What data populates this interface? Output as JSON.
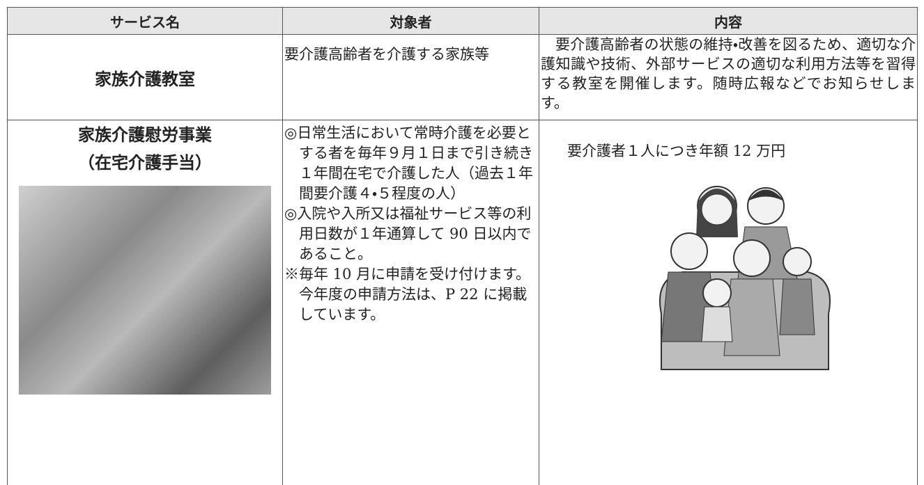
{
  "table": {
    "header": [
      "サービス名",
      "対象者",
      "内容"
    ],
    "rows": [
      {
        "service": [
          "家族介護教室"
        ],
        "target": [
          "要介護高齢者を介護する家族等"
        ],
        "content": "要介護高齢者の状態の維持・改善を図るため、適切な介護知識や技術、外部サービスの適切な利用方法等を習得する教室を開催します。随時広報などでお知らせします。"
      },
      {
        "service": [
          "家族介護慰労事業",
          "（在宅介護手当）"
        ],
        "target": [
          "◎日常生活において常時介護を必要とする者を毎年９月１日まで引き続き１年間在宅で介護した人（過去１年間要介護４・５程度の人）",
          "◎入院や入所又は福祉サービス等の利用日数が１年通算して 90 日以内であること。",
          "※毎年 10 月に申請を受け付けます。今年度の申請方法は、P 22 に掲載しています。"
        ],
        "content": "要介護者１人につき年額 12 万円"
      }
    ]
  }
}
